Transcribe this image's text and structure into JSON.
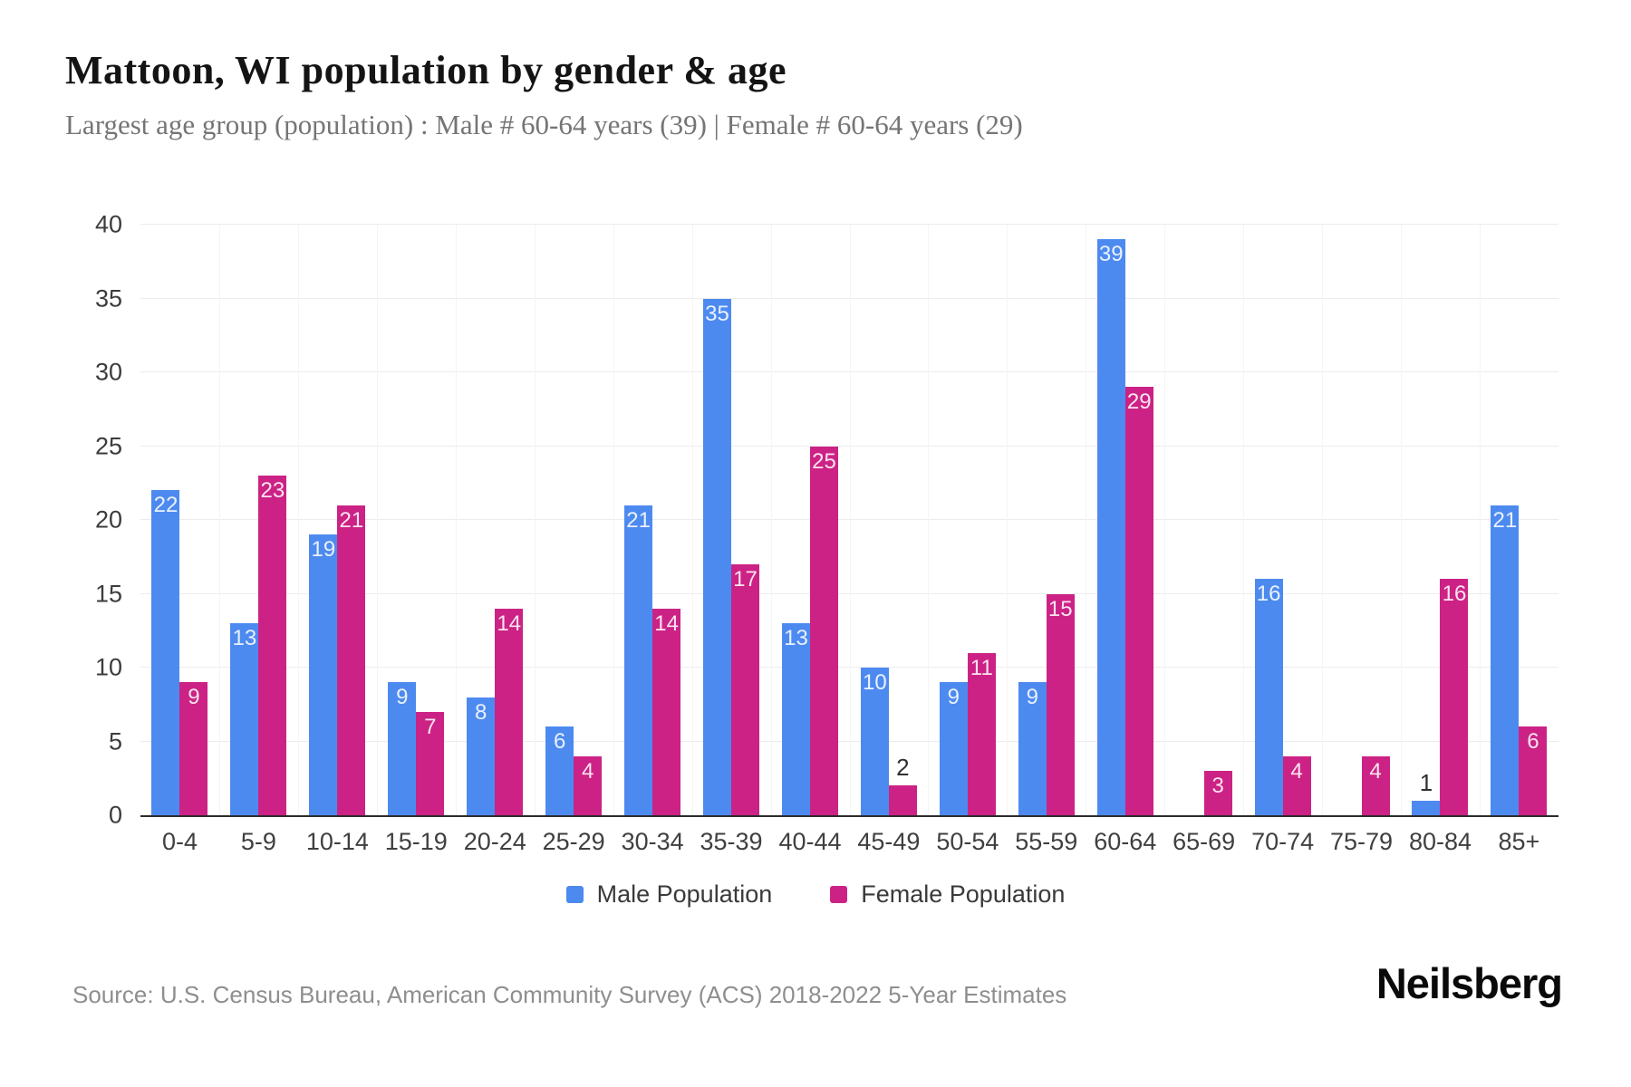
{
  "header": {
    "title": "Mattoon, WI population by gender & age",
    "subtitle": "Largest age group (population) : Male # 60-64 years (39) | Female # 60-64 years (29)"
  },
  "chart_data": {
    "type": "bar",
    "title": "Mattoon, WI population by gender & age",
    "categories": [
      "0-4",
      "5-9",
      "10-14",
      "15-19",
      "20-24",
      "25-29",
      "30-34",
      "35-39",
      "40-44",
      "45-49",
      "50-54",
      "55-59",
      "60-64",
      "65-69",
      "70-74",
      "75-79",
      "80-84",
      "85+"
    ],
    "series": [
      {
        "name": "Male Population",
        "color": "#4d8af0",
        "values": [
          22,
          13,
          19,
          9,
          8,
          6,
          21,
          35,
          13,
          10,
          9,
          9,
          39,
          0,
          16,
          0,
          1,
          21
        ]
      },
      {
        "name": "Female Population",
        "color": "#cc2285",
        "values": [
          9,
          23,
          21,
          7,
          14,
          4,
          14,
          17,
          25,
          2,
          11,
          15,
          29,
          3,
          4,
          4,
          16,
          6
        ]
      }
    ],
    "xlabel": "",
    "ylabel": "",
    "ylim": [
      0,
      40
    ],
    "yticks": [
      0,
      5,
      10,
      15,
      20,
      25,
      30,
      35,
      40
    ],
    "grid": true,
    "legend_position": "bottom"
  },
  "legend": {
    "male_label": "Male Population",
    "female_label": "Female Population"
  },
  "footer": {
    "source": "Source: U.S. Census Bureau, American Community Survey (ACS) 2018-2022 5-Year Estimates",
    "brand": "Neilsberg"
  },
  "colors": {
    "male": "#4d8af0",
    "female": "#cc2285",
    "gridline": "#ececec",
    "axis": "#2b2b2b"
  }
}
